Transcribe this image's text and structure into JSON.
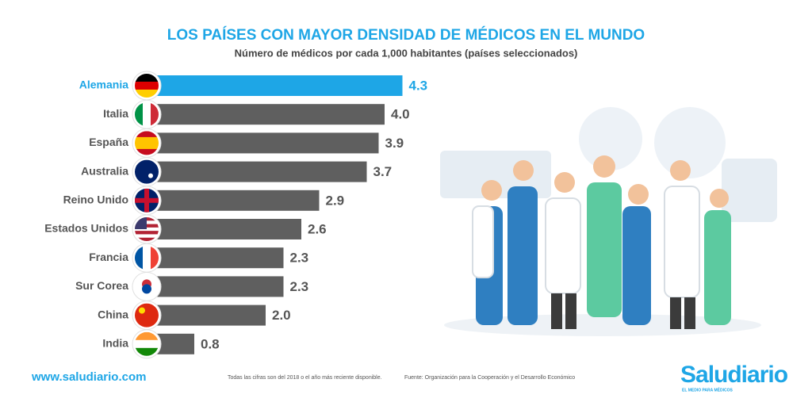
{
  "chart_data": {
    "type": "hbar",
    "title": "LOS PAÍSES CON MAYOR DENSIDAD DE MÉDICOS EN EL MUNDO",
    "subtitle": "Número de médicos por cada 1,000 habitantes (países seleccionados)",
    "categories": [
      "Alemania",
      "Italia",
      "España",
      "Australia",
      "Reino Unido",
      "Estados Unidos",
      "Francia",
      "Sur Corea",
      "China",
      "India"
    ],
    "values": [
      4.3,
      4.0,
      3.9,
      3.7,
      2.9,
      2.6,
      2.3,
      2.3,
      2.0,
      0.8
    ],
    "value_labels": [
      "4.3",
      "4.0",
      "3.9",
      "3.7",
      "2.9",
      "2.6",
      "2.3",
      "2.3",
      "2.0",
      "0.8"
    ],
    "colors": [
      "#1ea6e6",
      "#5f5f5f",
      "#5f5f5f",
      "#5f5f5f",
      "#5f5f5f",
      "#5f5f5f",
      "#5f5f5f",
      "#5f5f5f",
      "#5f5f5f",
      "#5f5f5f"
    ],
    "website": "www.saludiario.com",
    "note": "Todas las cifras son del 2018 o el año más reciente disponible.",
    "source": "Fuente: Organización para la Cooperación y el Desarrollo Económico",
    "brand": "Saludiario",
    "brand_tagline": "EL MEDIO PARA MÉDICOS"
  }
}
